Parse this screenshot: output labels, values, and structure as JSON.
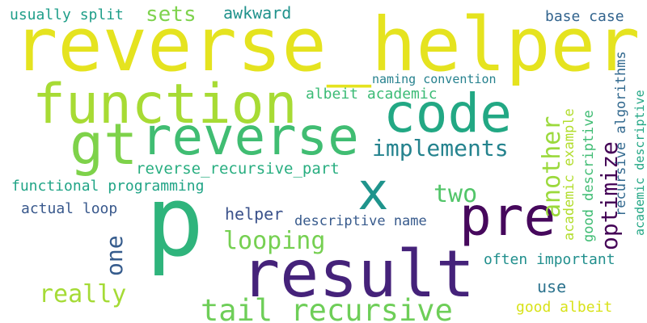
{
  "words": [
    {
      "text": "reverse_helper",
      "color": "#e5e31f"
    },
    {
      "text": "function",
      "color": "#a7db34"
    },
    {
      "text": "code",
      "color": "#22a884"
    },
    {
      "text": "gt",
      "color": "#7ed24a"
    },
    {
      "text": "reverse",
      "color": "#40bd72"
    },
    {
      "text": "p",
      "color": "#2fb47c"
    },
    {
      "text": "x",
      "color": "#1f948c"
    },
    {
      "text": "pre",
      "color": "#46085c"
    },
    {
      "text": "result",
      "color": "#45227a"
    },
    {
      "text": "tail recursive",
      "color": "#6ece58"
    },
    {
      "text": "implements",
      "color": "#25838e"
    },
    {
      "text": "looping",
      "color": "#76d052"
    },
    {
      "text": "optimize",
      "color": "#440256"
    },
    {
      "text": "another",
      "color": "#9bd93c"
    },
    {
      "text": "two",
      "color": "#52c569"
    },
    {
      "text": "really",
      "color": "#a5db36"
    },
    {
      "text": "one",
      "color": "#365c8d"
    },
    {
      "text": "sets",
      "color": "#7fd34e"
    },
    {
      "text": "awkward",
      "color": "#20928c"
    },
    {
      "text": "usually split",
      "color": "#1f9e89"
    },
    {
      "text": "base case",
      "color": "#32648e"
    },
    {
      "text": "naming convention",
      "color": "#26818e"
    },
    {
      "text": "albeit academic",
      "color": "#3bbb75"
    },
    {
      "text": "reverse_recursive_part",
      "color": "#28ae80"
    },
    {
      "text": "functional programming",
      "color": "#20a486"
    },
    {
      "text": "actual loop",
      "color": "#38588c"
    },
    {
      "text": "helper",
      "color": "#3b528b"
    },
    {
      "text": "descriptive name",
      "color": "#375a8c"
    },
    {
      "text": "often important",
      "color": "#218f8d"
    },
    {
      "text": "use",
      "color": "#2c738e"
    },
    {
      "text": "good albeit",
      "color": "#d8e219"
    },
    {
      "text": "recursive algorithms",
      "color": "#31688e"
    },
    {
      "text": "good descriptive",
      "color": "#3fbc73"
    },
    {
      "text": "academic example",
      "color": "#b2dd2d"
    },
    {
      "text": "academic descriptive",
      "color": "#22a785"
    }
  ]
}
